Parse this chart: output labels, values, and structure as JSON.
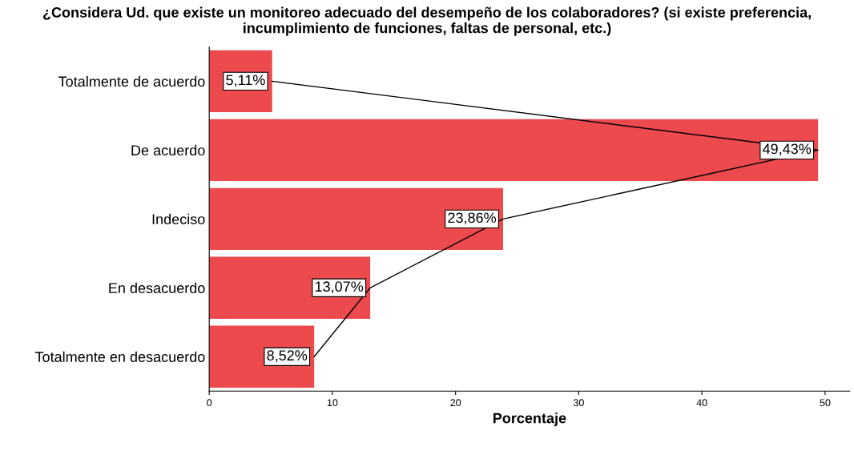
{
  "chart_data": {
    "type": "bar",
    "orientation": "horizontal",
    "title": "¿Considera Ud. que existe un monitoreo adecuado del desempeño de los colaboradores? (si existe preferencia, incumplimiento de funciones, faltas de personal, etc.)",
    "xlabel": "Porcentaje",
    "categories": [
      "Totalmente de acuerdo",
      "De acuerdo",
      "Indeciso",
      "En desacuerdo",
      "Totalmente en desacuerdo"
    ],
    "series": [
      {
        "type": "bar",
        "color": "#ec4a4c",
        "values": [
          5.11,
          49.43,
          23.86,
          13.07,
          8.52
        ],
        "value_labels": [
          "5,11%",
          "49,43%",
          "23,86%",
          "13,07%",
          "8,52%"
        ]
      },
      {
        "type": "line",
        "color": "#000000",
        "values": [
          5.11,
          49.43,
          23.86,
          13.07,
          8.52
        ]
      }
    ],
    "xlim": [
      0,
      52
    ],
    "xticks": [
      0,
      10,
      20,
      30,
      40,
      50
    ],
    "grid": false,
    "legend": false
  }
}
